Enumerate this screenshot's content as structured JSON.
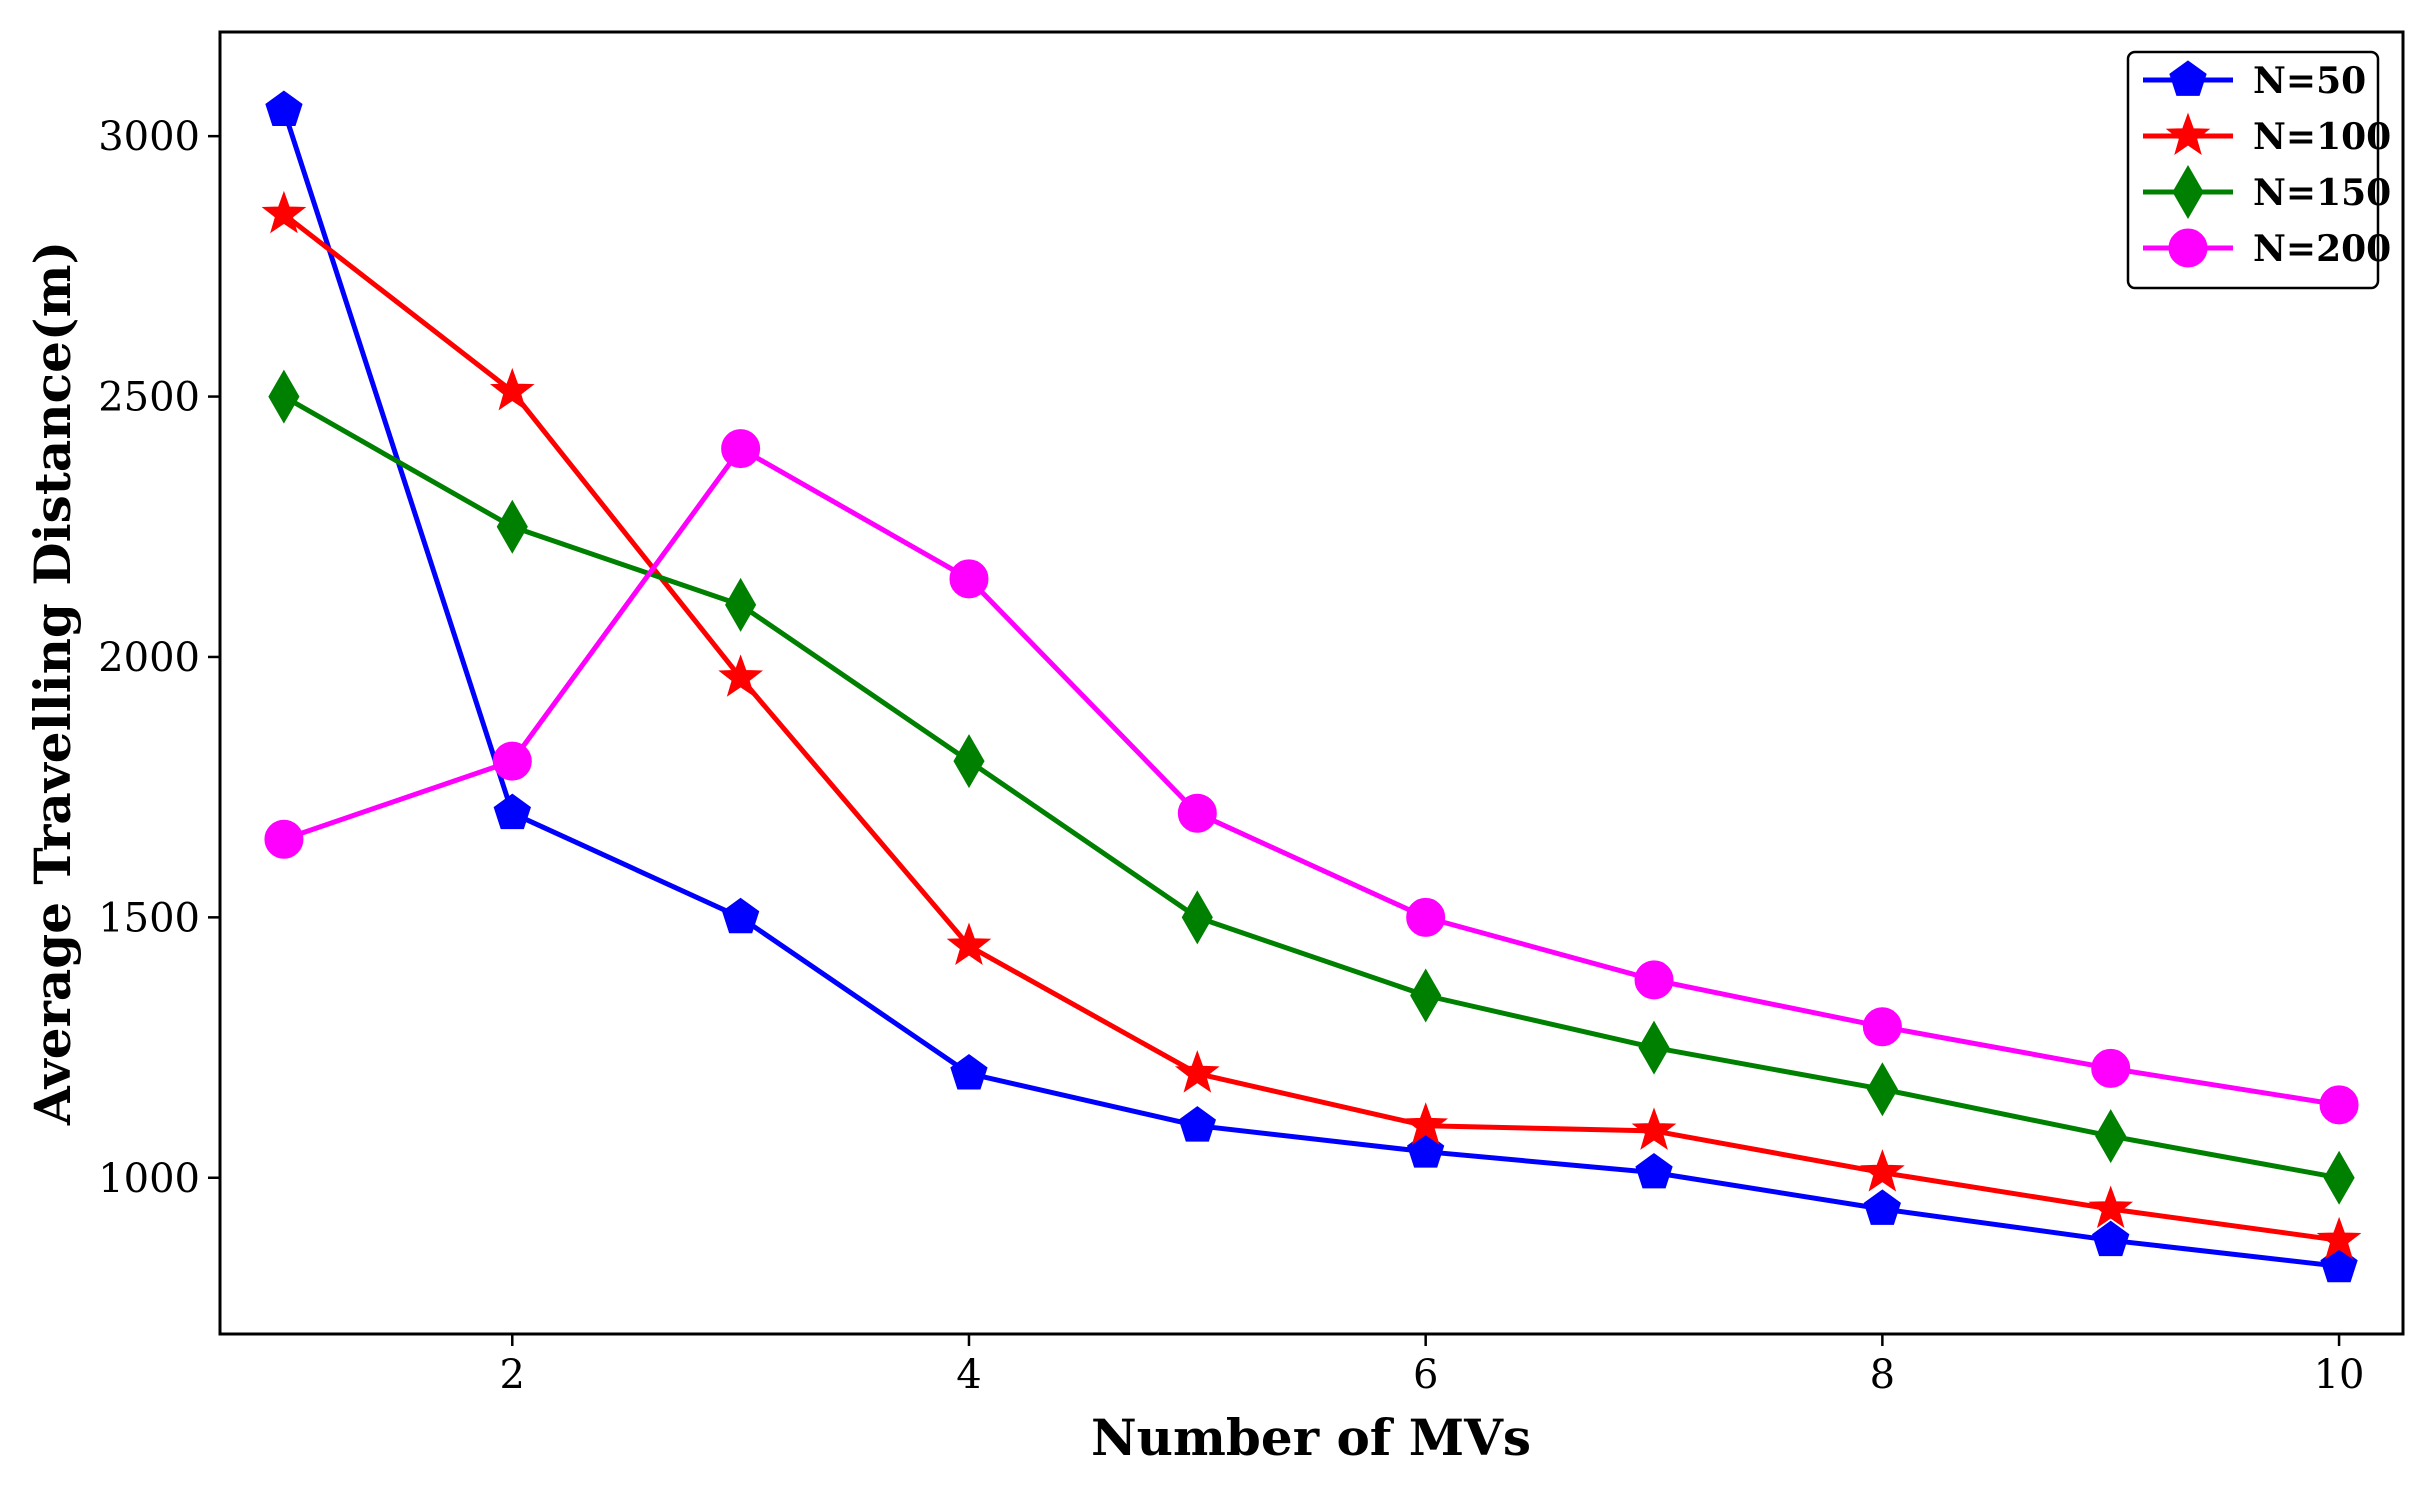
{
  "chart_data": {
    "type": "line",
    "title": "",
    "xlabel": "Number of MVs",
    "ylabel": "Average Travelling Distance(m)",
    "xlim": [
      0.72,
      10.28
    ],
    "ylim": [
      700,
      3200
    ],
    "x_ticks": [
      "2",
      "4",
      "6",
      "8",
      "10"
    ],
    "y_ticks": [
      "1000",
      "1500",
      "2000",
      "2500",
      "3000"
    ],
    "grid": false,
    "legend_position": "top-right",
    "x": [
      1,
      2,
      3,
      4,
      5,
      6,
      7,
      8,
      9,
      10
    ],
    "series": [
      {
        "name": "N=50",
        "color": "#0000ff",
        "marker": "pentagon",
        "values": [
          3050,
          1700,
          1500,
          1200,
          1100,
          1050,
          1010,
          940,
          880,
          830
        ]
      },
      {
        "name": "N=100",
        "color": "#ff0000",
        "marker": "star",
        "values": [
          2850,
          2510,
          1960,
          1445,
          1200,
          1100,
          1090,
          1010,
          940,
          880
        ]
      },
      {
        "name": "N=150",
        "color": "#008000",
        "marker": "diamond",
        "values": [
          2500,
          2250,
          2100,
          1800,
          1500,
          1350,
          1250,
          1170,
          1080,
          1000
        ]
      },
      {
        "name": "N=200",
        "color": "#ff00ff",
        "marker": "circle",
        "values": [
          1650,
          1800,
          2400,
          2150,
          1700,
          1500,
          1380,
          1290,
          1210,
          1140
        ]
      }
    ]
  }
}
